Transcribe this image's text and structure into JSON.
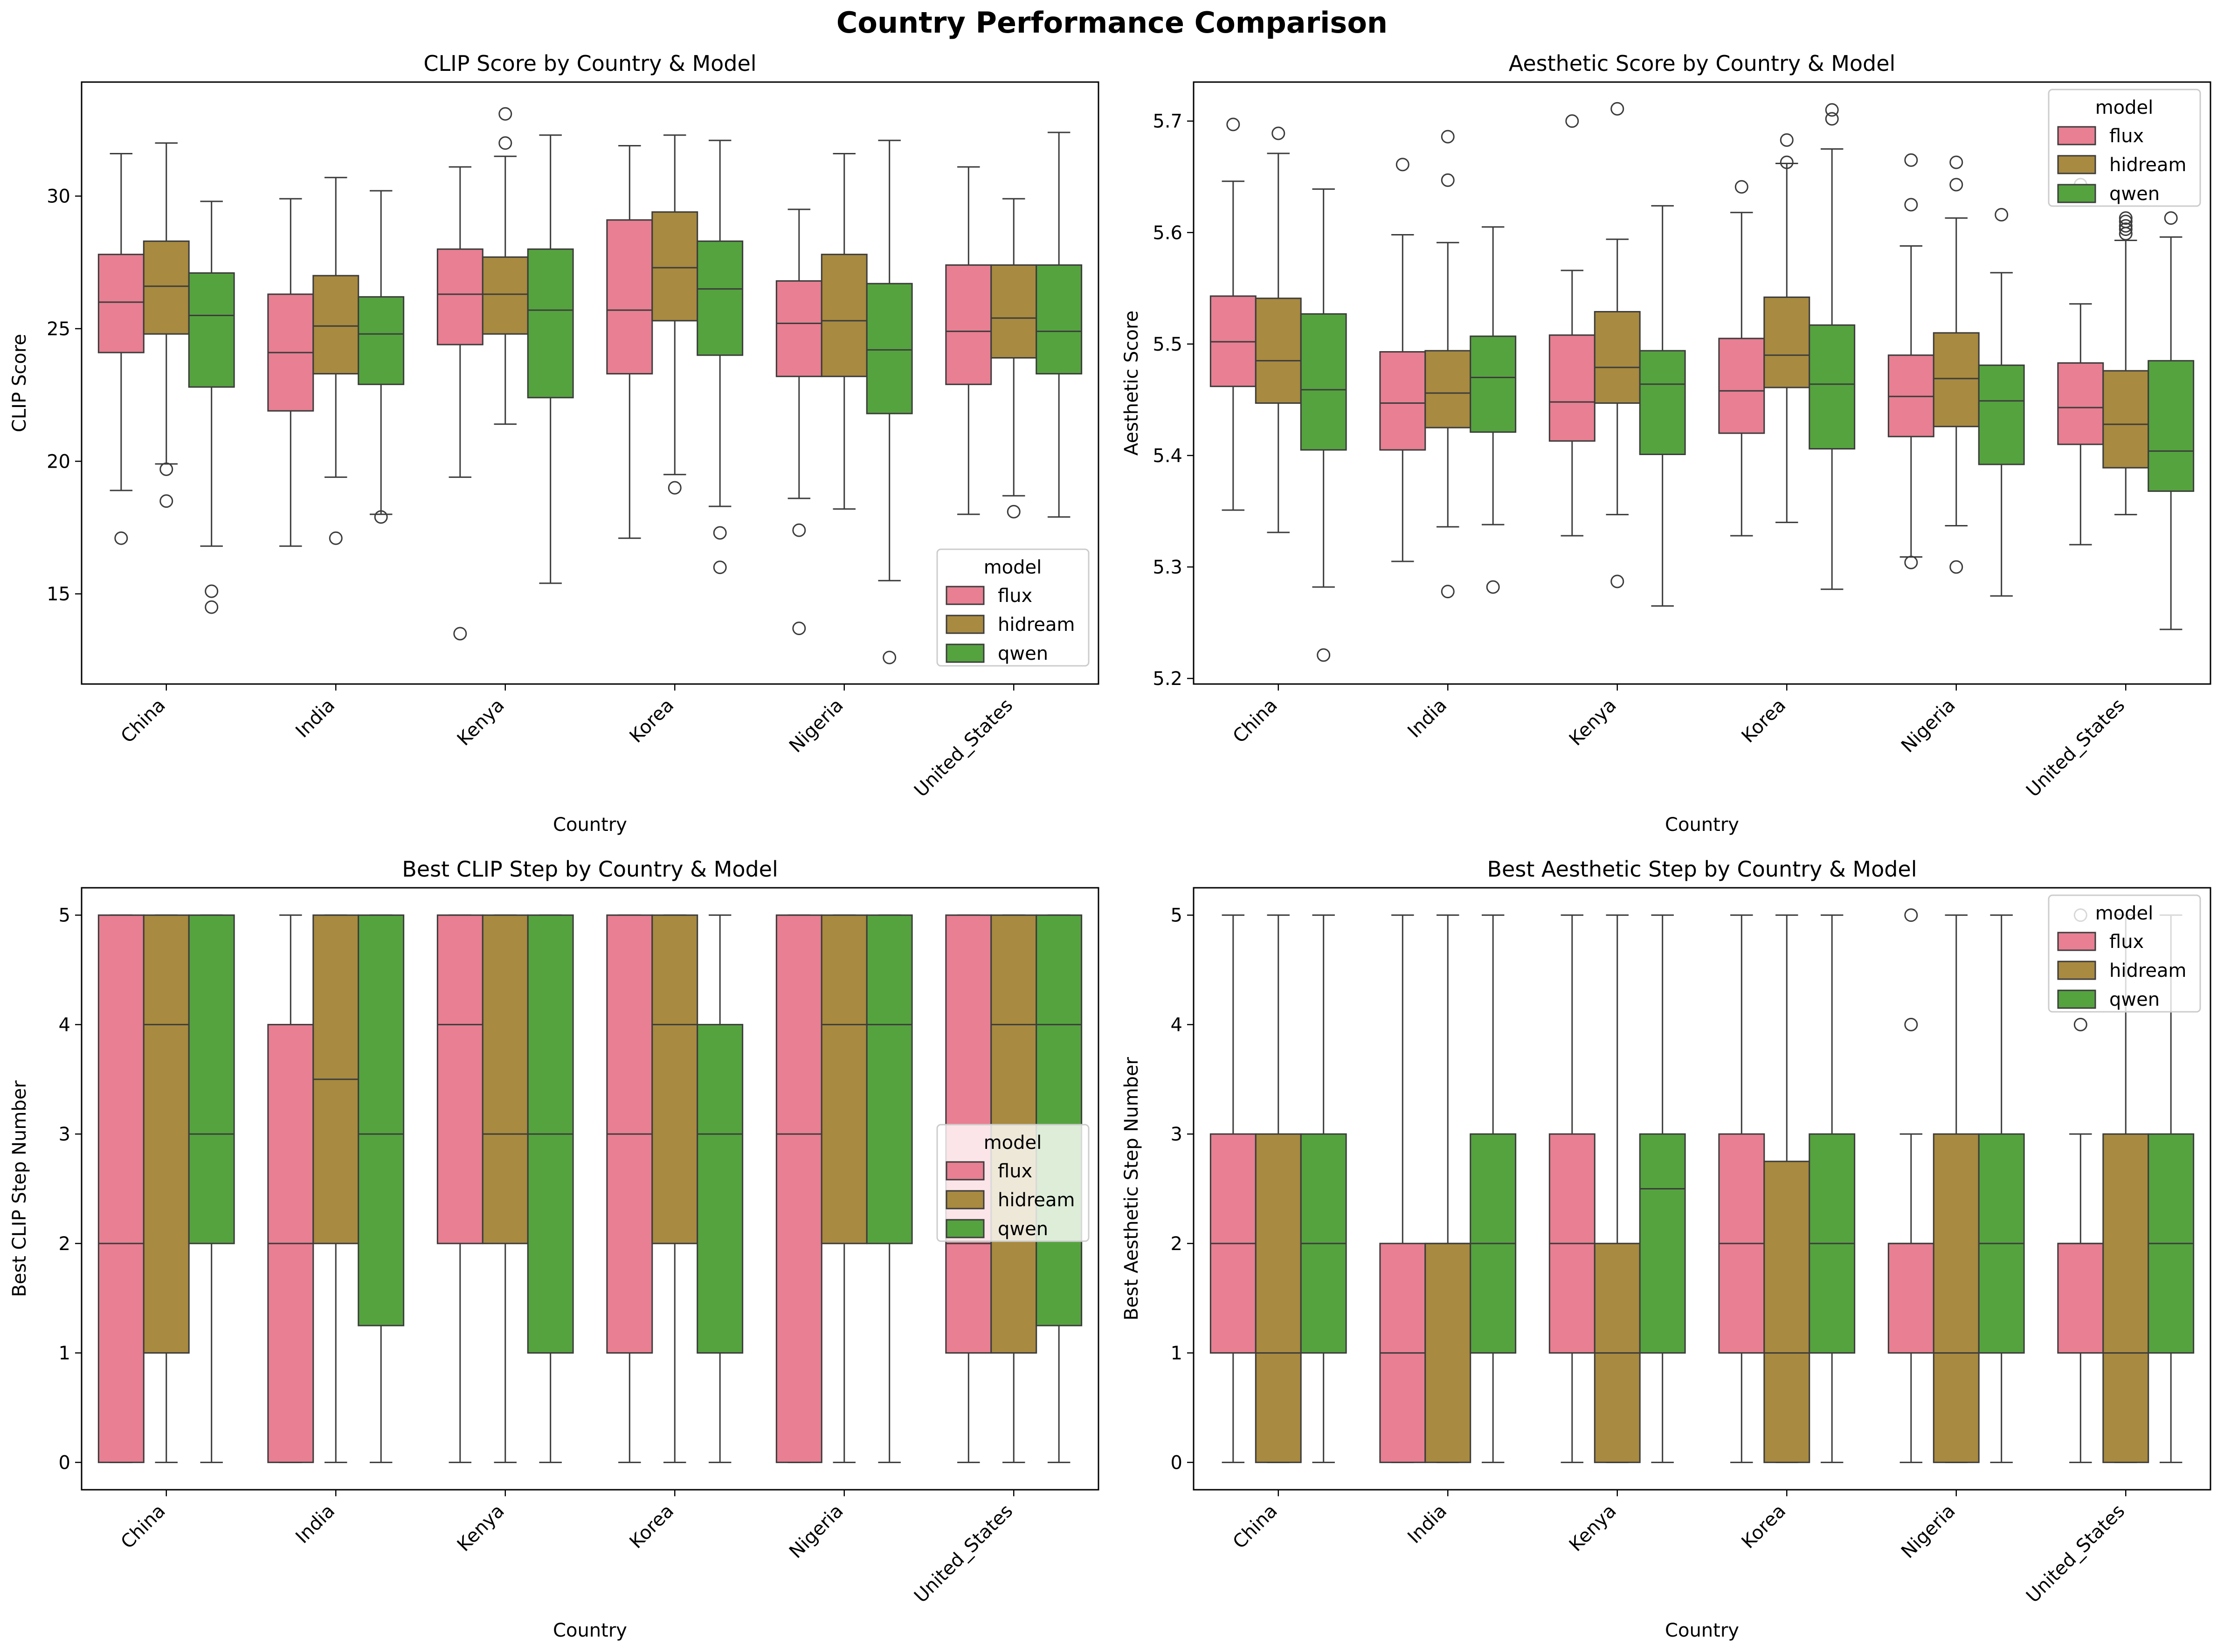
{
  "suptitle": "Country Performance Comparison",
  "palette": {
    "flux": "#e87f92",
    "hidream": "#a88a40",
    "qwen": "#55a33f"
  },
  "chart_data": [
    {
      "type": "box",
      "title": "CLIP Score by Country & Model",
      "xlabel": "Country",
      "ylabel": "CLIP Score",
      "ylim": [
        11.6,
        34.3
      ],
      "yticks": [
        15,
        20,
        25,
        30
      ],
      "legend": {
        "title": "model",
        "entries": [
          "flux",
          "hidream",
          "qwen"
        ],
        "placement": "lower-right"
      },
      "categories": [
        "China",
        "India",
        "Kenya",
        "Korea",
        "Nigeria",
        "United_States"
      ],
      "series": [
        {
          "name": "flux",
          "boxes": [
            {
              "whislo": 18.9,
              "q1": 24.1,
              "med": 26.0,
              "q3": 27.8,
              "whishi": 31.6,
              "fliers": [
                17.1
              ]
            },
            {
              "whislo": 16.8,
              "q1": 21.9,
              "med": 24.1,
              "q3": 26.3,
              "whishi": 29.9,
              "fliers": []
            },
            {
              "whislo": 19.4,
              "q1": 24.4,
              "med": 26.3,
              "q3": 28.0,
              "whishi": 31.1,
              "fliers": [
                13.5
              ]
            },
            {
              "whislo": 17.1,
              "q1": 23.3,
              "med": 25.7,
              "q3": 29.1,
              "whishi": 31.9,
              "fliers": []
            },
            {
              "whislo": 18.6,
              "q1": 23.2,
              "med": 25.2,
              "q3": 26.8,
              "whishi": 29.5,
              "fliers": [
                17.4,
                13.7
              ]
            },
            {
              "whislo": 18.0,
              "q1": 22.9,
              "med": 24.9,
              "q3": 27.4,
              "whishi": 31.1,
              "fliers": []
            }
          ]
        },
        {
          "name": "hidream",
          "boxes": [
            {
              "whislo": 19.9,
              "q1": 24.8,
              "med": 26.6,
              "q3": 28.3,
              "whishi": 32.0,
              "fliers": [
                19.7,
                18.5
              ]
            },
            {
              "whislo": 19.4,
              "q1": 23.3,
              "med": 25.1,
              "q3": 27.0,
              "whishi": 30.7,
              "fliers": [
                17.1
              ]
            },
            {
              "whislo": 21.4,
              "q1": 24.8,
              "med": 26.3,
              "q3": 27.7,
              "whishi": 31.5,
              "fliers": [
                33.1,
                32.0
              ]
            },
            {
              "whislo": 19.5,
              "q1": 25.3,
              "med": 27.3,
              "q3": 29.4,
              "whishi": 32.3,
              "fliers": [
                19.0
              ]
            },
            {
              "whislo": 18.2,
              "q1": 23.2,
              "med": 25.3,
              "q3": 27.8,
              "whishi": 31.6,
              "fliers": []
            },
            {
              "whislo": 18.7,
              "q1": 23.9,
              "med": 25.4,
              "q3": 27.4,
              "whishi": 29.9,
              "fliers": [
                18.1
              ]
            }
          ]
        },
        {
          "name": "qwen",
          "boxes": [
            {
              "whislo": 16.8,
              "q1": 22.8,
              "med": 25.5,
              "q3": 27.1,
              "whishi": 29.8,
              "fliers": [
                15.1,
                14.5
              ]
            },
            {
              "whislo": 18.0,
              "q1": 22.9,
              "med": 24.8,
              "q3": 26.2,
              "whishi": 30.2,
              "fliers": [
                17.9
              ]
            },
            {
              "whislo": 15.4,
              "q1": 22.4,
              "med": 25.7,
              "q3": 28.0,
              "whishi": 32.3,
              "fliers": []
            },
            {
              "whislo": 18.3,
              "q1": 24.0,
              "med": 26.5,
              "q3": 28.3,
              "whishi": 32.1,
              "fliers": [
                17.3,
                16.0
              ]
            },
            {
              "whislo": 15.5,
              "q1": 21.8,
              "med": 24.2,
              "q3": 26.7,
              "whishi": 32.1,
              "fliers": [
                12.6
              ]
            },
            {
              "whislo": 17.9,
              "q1": 23.3,
              "med": 24.9,
              "q3": 27.4,
              "whishi": 32.4,
              "fliers": []
            }
          ]
        }
      ]
    },
    {
      "type": "box",
      "title": "Aesthetic Score by Country & Model",
      "xlabel": "Country",
      "ylabel": "Aesthetic Score",
      "ylim": [
        5.195,
        5.735
      ],
      "yticks": [
        5.2,
        5.3,
        5.4,
        5.5,
        5.6,
        5.7
      ],
      "legend": {
        "title": "model",
        "entries": [
          "flux",
          "hidream",
          "qwen"
        ],
        "placement": "upper-right"
      },
      "categories": [
        "China",
        "India",
        "Kenya",
        "Korea",
        "Nigeria",
        "United_States"
      ],
      "series": [
        {
          "name": "flux",
          "boxes": [
            {
              "whislo": 5.351,
              "q1": 5.462,
              "med": 5.502,
              "q3": 5.543,
              "whishi": 5.646,
              "fliers": [
                5.697
              ]
            },
            {
              "whislo": 5.305,
              "q1": 5.405,
              "med": 5.447,
              "q3": 5.493,
              "whishi": 5.598,
              "fliers": [
                5.661
              ]
            },
            {
              "whislo": 5.328,
              "q1": 5.413,
              "med": 5.448,
              "q3": 5.508,
              "whishi": 5.566,
              "fliers": [
                5.7
              ]
            },
            {
              "whislo": 5.328,
              "q1": 5.42,
              "med": 5.458,
              "q3": 5.505,
              "whishi": 5.618,
              "fliers": [
                5.641
              ]
            },
            {
              "whislo": 5.309,
              "q1": 5.417,
              "med": 5.453,
              "q3": 5.49,
              "whishi": 5.588,
              "fliers": [
                5.665,
                5.625,
                5.304
              ]
            },
            {
              "whislo": 5.32,
              "q1": 5.41,
              "med": 5.443,
              "q3": 5.483,
              "whishi": 5.536,
              "fliers": [
                5.643
              ]
            }
          ]
        },
        {
          "name": "hidream",
          "boxes": [
            {
              "whislo": 5.331,
              "q1": 5.447,
              "med": 5.485,
              "q3": 5.541,
              "whishi": 5.671,
              "fliers": [
                5.689
              ]
            },
            {
              "whislo": 5.336,
              "q1": 5.425,
              "med": 5.456,
              "q3": 5.494,
              "whishi": 5.591,
              "fliers": [
                5.686,
                5.647,
                5.278
              ]
            },
            {
              "whislo": 5.347,
              "q1": 5.447,
              "med": 5.479,
              "q3": 5.529,
              "whishi": 5.594,
              "fliers": [
                5.711,
                5.287
              ]
            },
            {
              "whislo": 5.34,
              "q1": 5.461,
              "med": 5.49,
              "q3": 5.542,
              "whishi": 5.662,
              "fliers": [
                5.683,
                5.663
              ]
            },
            {
              "whislo": 5.337,
              "q1": 5.426,
              "med": 5.469,
              "q3": 5.51,
              "whishi": 5.613,
              "fliers": [
                5.663,
                5.643,
                5.3
              ]
            },
            {
              "whislo": 5.347,
              "q1": 5.389,
              "med": 5.428,
              "q3": 5.476,
              "whishi": 5.593,
              "fliers": [
                5.61,
                5.606,
                5.603,
                5.599,
                5.613
              ]
            }
          ]
        },
        {
          "name": "qwen",
          "boxes": [
            {
              "whislo": 5.282,
              "q1": 5.405,
              "med": 5.459,
              "q3": 5.527,
              "whishi": 5.639,
              "fliers": [
                5.221
              ]
            },
            {
              "whislo": 5.338,
              "q1": 5.421,
              "med": 5.47,
              "q3": 5.507,
              "whishi": 5.605,
              "fliers": [
                5.282
              ]
            },
            {
              "whislo": 5.265,
              "q1": 5.401,
              "med": 5.464,
              "q3": 5.494,
              "whishi": 5.624,
              "fliers": []
            },
            {
              "whislo": 5.28,
              "q1": 5.406,
              "med": 5.464,
              "q3": 5.517,
              "whishi": 5.675,
              "fliers": [
                5.71,
                5.702
              ]
            },
            {
              "whislo": 5.274,
              "q1": 5.392,
              "med": 5.449,
              "q3": 5.481,
              "whishi": 5.564,
              "fliers": [
                5.616
              ]
            },
            {
              "whislo": 5.244,
              "q1": 5.368,
              "med": 5.404,
              "q3": 5.485,
              "whishi": 5.596,
              "fliers": [
                5.613
              ]
            }
          ]
        }
      ]
    },
    {
      "type": "box",
      "title": "Best CLIP Step by Country & Model",
      "xlabel": "Country",
      "ylabel": "Best CLIP Step Number",
      "ylim": [
        -0.25,
        5.25
      ],
      "yticks": [
        0,
        1,
        2,
        3,
        4,
        5
      ],
      "legend": {
        "title": "model",
        "entries": [
          "flux",
          "hidream",
          "qwen"
        ],
        "placement": "center-right"
      },
      "categories": [
        "China",
        "India",
        "Kenya",
        "Korea",
        "Nigeria",
        "United_States"
      ],
      "series": [
        {
          "name": "flux",
          "boxes": [
            {
              "whislo": 0,
              "q1": 0,
              "med": 2,
              "q3": 5,
              "whishi": 5,
              "fliers": []
            },
            {
              "whislo": 0,
              "q1": 0,
              "med": 2,
              "q3": 4,
              "whishi": 5,
              "fliers": []
            },
            {
              "whislo": 0,
              "q1": 2,
              "med": 4,
              "q3": 5,
              "whishi": 5,
              "fliers": []
            },
            {
              "whislo": 0,
              "q1": 1,
              "med": 3,
              "q3": 5,
              "whishi": 5,
              "fliers": []
            },
            {
              "whislo": 0,
              "q1": 0,
              "med": 3,
              "q3": 5,
              "whishi": 5,
              "fliers": []
            },
            {
              "whislo": 0,
              "q1": 1,
              "med": 2,
              "q3": 5,
              "whishi": 5,
              "fliers": []
            }
          ]
        },
        {
          "name": "hidream",
          "boxes": [
            {
              "whislo": 0,
              "q1": 1,
              "med": 4,
              "q3": 5,
              "whishi": 5,
              "fliers": []
            },
            {
              "whislo": 0,
              "q1": 2,
              "med": 3.5,
              "q3": 5,
              "whishi": 5,
              "fliers": []
            },
            {
              "whislo": 0,
              "q1": 2,
              "med": 3,
              "q3": 5,
              "whishi": 5,
              "fliers": []
            },
            {
              "whislo": 0,
              "q1": 2,
              "med": 4,
              "q3": 5,
              "whishi": 5,
              "fliers": []
            },
            {
              "whislo": 0,
              "q1": 2,
              "med": 4,
              "q3": 5,
              "whishi": 5,
              "fliers": []
            },
            {
              "whislo": 0,
              "q1": 1,
              "med": 4,
              "q3": 5,
              "whishi": 5,
              "fliers": []
            }
          ]
        },
        {
          "name": "qwen",
          "boxes": [
            {
              "whislo": 0,
              "q1": 2,
              "med": 3,
              "q3": 5,
              "whishi": 5,
              "fliers": []
            },
            {
              "whislo": 0,
              "q1": 1.25,
              "med": 3,
              "q3": 5,
              "whishi": 5,
              "fliers": []
            },
            {
              "whislo": 0,
              "q1": 1,
              "med": 3,
              "q3": 5,
              "whishi": 5,
              "fliers": []
            },
            {
              "whislo": 0,
              "q1": 1,
              "med": 3,
              "q3": 4,
              "whishi": 5,
              "fliers": []
            },
            {
              "whislo": 0,
              "q1": 2,
              "med": 4,
              "q3": 5,
              "whishi": 5,
              "fliers": []
            },
            {
              "whislo": 0,
              "q1": 1.25,
              "med": 4,
              "q3": 5,
              "whishi": 5,
              "fliers": []
            }
          ]
        }
      ]
    },
    {
      "type": "box",
      "title": "Best Aesthetic Step by Country & Model",
      "xlabel": "Country",
      "ylabel": "Best Aesthetic Step Number",
      "ylim": [
        -0.25,
        5.25
      ],
      "yticks": [
        0,
        1,
        2,
        3,
        4,
        5
      ],
      "legend": {
        "title": "model",
        "entries": [
          "flux",
          "hidream",
          "qwen"
        ],
        "placement": "upper-right"
      },
      "categories": [
        "China",
        "India",
        "Kenya",
        "Korea",
        "Nigeria",
        "United_States"
      ],
      "series": [
        {
          "name": "flux",
          "boxes": [
            {
              "whislo": 0,
              "q1": 1,
              "med": 2,
              "q3": 3,
              "whishi": 5,
              "fliers": []
            },
            {
              "whislo": 0,
              "q1": 0,
              "med": 1,
              "q3": 2,
              "whishi": 5,
              "fliers": []
            },
            {
              "whislo": 0,
              "q1": 1,
              "med": 2,
              "q3": 3,
              "whishi": 5,
              "fliers": []
            },
            {
              "whislo": 0,
              "q1": 1,
              "med": 2,
              "q3": 3,
              "whishi": 5,
              "fliers": []
            },
            {
              "whislo": 0,
              "q1": 1,
              "med": 2,
              "q3": 2,
              "whishi": 3,
              "fliers": [
                5,
                4
              ]
            },
            {
              "whislo": 0,
              "q1": 1,
              "med": 2,
              "q3": 2,
              "whishi": 3,
              "fliers": [
                5,
                4
              ]
            }
          ]
        },
        {
          "name": "hidream",
          "boxes": [
            {
              "whislo": 0,
              "q1": 0,
              "med": 1,
              "q3": 3,
              "whishi": 5,
              "fliers": []
            },
            {
              "whislo": 0,
              "q1": 0,
              "med": 2,
              "q3": 2,
              "whishi": 5,
              "fliers": []
            },
            {
              "whislo": 0,
              "q1": 0,
              "med": 1,
              "q3": 2,
              "whishi": 5,
              "fliers": []
            },
            {
              "whislo": 0,
              "q1": 0,
              "med": 1,
              "q3": 2.75,
              "whishi": 5,
              "fliers": []
            },
            {
              "whislo": 0,
              "q1": 0,
              "med": 1,
              "q3": 3,
              "whishi": 5,
              "fliers": []
            },
            {
              "whislo": 0,
              "q1": 0,
              "med": 1,
              "q3": 3,
              "whishi": 5,
              "fliers": []
            }
          ]
        },
        {
          "name": "qwen",
          "boxes": [
            {
              "whislo": 0,
              "q1": 1,
              "med": 2,
              "q3": 3,
              "whishi": 5,
              "fliers": []
            },
            {
              "whislo": 0,
              "q1": 1,
              "med": 2,
              "q3": 3,
              "whishi": 5,
              "fliers": []
            },
            {
              "whislo": 0,
              "q1": 1,
              "med": 2.5,
              "q3": 3,
              "whishi": 5,
              "fliers": []
            },
            {
              "whislo": 0,
              "q1": 1,
              "med": 2,
              "q3": 3,
              "whishi": 5,
              "fliers": []
            },
            {
              "whislo": 0,
              "q1": 1,
              "med": 2,
              "q3": 3,
              "whishi": 5,
              "fliers": []
            },
            {
              "whislo": 0,
              "q1": 1,
              "med": 2,
              "q3": 3,
              "whishi": 5,
              "fliers": []
            }
          ]
        }
      ]
    }
  ]
}
